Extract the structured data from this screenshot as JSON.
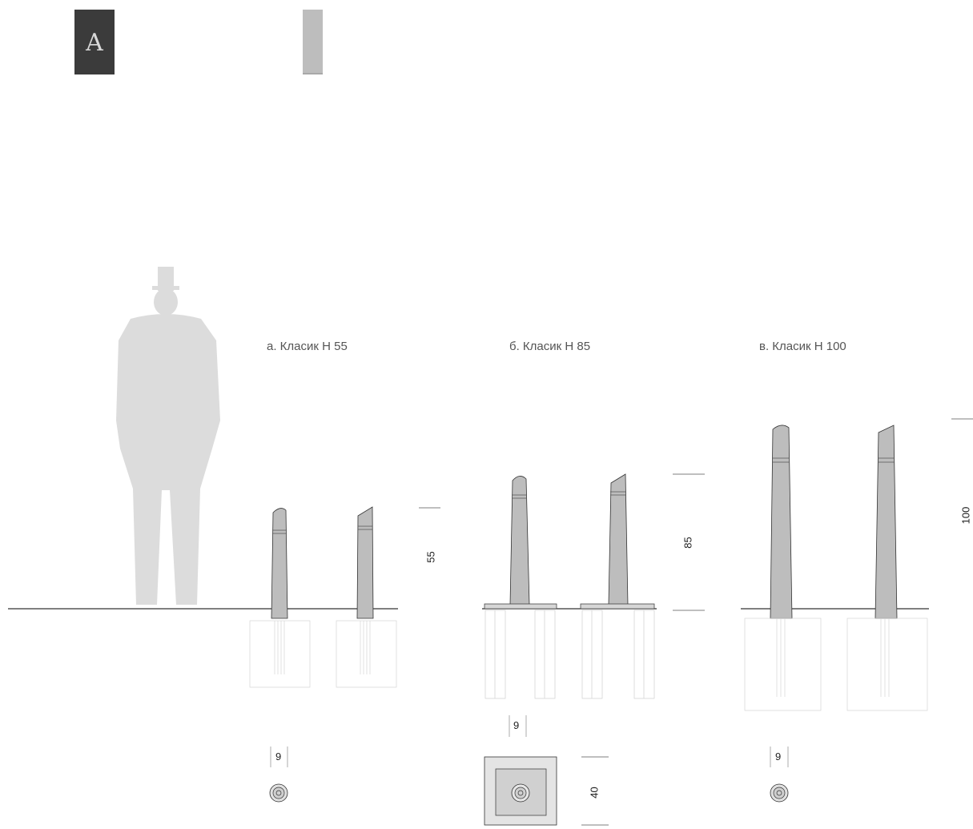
{
  "material_swatches": {
    "dark": {
      "letter": "A",
      "color": "#3b3b3b"
    },
    "light": {
      "color": "#bdbdbd"
    }
  },
  "variants": [
    {
      "caption": "а. Класик Н 55",
      "height_label": "55",
      "base_label": "9"
    },
    {
      "caption": "б. Класик Н 85",
      "height_label": "85",
      "base_label": "9",
      "plate_label": "40"
    },
    {
      "caption": "в. Класик Н 100",
      "height_label": "100",
      "base_label": "9"
    }
  ],
  "colors": {
    "bollard_fill": "#bdbdbd",
    "silhouette": "#dcdcdc",
    "ground": "#333333",
    "dim_line": "#555555"
  }
}
